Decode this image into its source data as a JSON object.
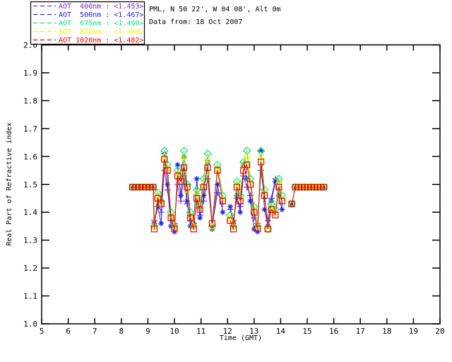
{
  "header": {
    "line1": "PML, N 50 22', W 04 08', Alt 0m",
    "line2": "Data from: 18 Oct 2007"
  },
  "colors": {
    "background": "#ffffff",
    "frame": "#000000",
    "text": "#000000"
  },
  "chart_data": {
    "type": "line",
    "title": "",
    "xlabel": "Time (GMT)",
    "ylabel": "Real Part of Refractive index",
    "xlim": [
      5,
      20
    ],
    "ylim": [
      1.0,
      2.0
    ],
    "x_tick_step": 1,
    "y_tick_step": 0.1,
    "grid": false,
    "legend_position": "top-left",
    "x": [
      8.42,
      8.55,
      8.68,
      8.81,
      8.94,
      9.07,
      9.2,
      9.24,
      9.37,
      9.5,
      9.62,
      9.74,
      9.87,
      10.0,
      10.12,
      10.24,
      10.36,
      10.48,
      10.6,
      10.72,
      10.84,
      10.96,
      11.1,
      11.25,
      11.42,
      11.62,
      11.82,
      12.1,
      12.22,
      12.35,
      12.48,
      12.6,
      12.73,
      12.86,
      13.0,
      13.13,
      13.26,
      13.39,
      13.52,
      13.65,
      13.8,
      13.93,
      14.05,
      14.42,
      14.55,
      14.67,
      14.79,
      14.91,
      15.03,
      15.15,
      15.27,
      15.39,
      15.51,
      15.63
    ],
    "segments": [
      [
        0,
        26
      ],
      [
        27,
        42
      ],
      [
        43,
        53
      ]
    ],
    "series": [
      {
        "name": "AOT 400nm",
        "legend_label": "AOT  400nm : <1.453>",
        "mean_value": "1.453",
        "color": "#7A2FC4",
        "marker": "plus",
        "values": [
          1.49,
          1.49,
          1.49,
          1.49,
          1.49,
          1.49,
          1.49,
          1.37,
          1.44,
          1.4,
          1.55,
          1.48,
          1.37,
          1.36,
          1.5,
          1.44,
          1.53,
          1.43,
          1.37,
          1.36,
          1.44,
          1.39,
          1.44,
          1.52,
          1.35,
          1.47,
          1.43,
          1.41,
          1.37,
          1.45,
          1.42,
          1.53,
          1.49,
          1.46,
          1.38,
          1.36,
          1.55,
          1.45,
          1.37,
          1.45,
          1.52,
          1.51,
          1.43,
          1.43,
          1.49,
          1.49,
          1.49,
          1.49,
          1.49,
          1.49,
          1.49,
          1.49,
          1.49,
          1.49
        ]
      },
      {
        "name": "AOT 500nm",
        "legend_label": "AOT  500nm : <1.467>",
        "mean_value": "1.467",
        "color": "#2020E0",
        "marker": "asterisk",
        "values": [
          1.49,
          1.49,
          1.49,
          1.49,
          1.49,
          1.49,
          1.49,
          1.36,
          1.42,
          1.36,
          1.61,
          1.5,
          1.35,
          1.33,
          1.57,
          1.46,
          1.6,
          1.44,
          1.35,
          1.36,
          1.52,
          1.38,
          1.46,
          1.58,
          1.34,
          1.5,
          1.4,
          1.42,
          1.36,
          1.46,
          1.4,
          1.57,
          1.52,
          1.44,
          1.34,
          1.33,
          1.62,
          1.41,
          1.35,
          1.44,
          1.51,
          1.46,
          1.41,
          1.43,
          1.49,
          1.49,
          1.49,
          1.49,
          1.49,
          1.49,
          1.49,
          1.49,
          1.49,
          1.49
        ]
      },
      {
        "name": "AOT 675nm",
        "legend_label": "AOT  675nm : <1.490>",
        "mean_value": "1.490",
        "color": "#00E87A",
        "marker": "diamond",
        "values": [
          1.49,
          1.49,
          1.49,
          1.49,
          1.49,
          1.49,
          1.49,
          1.35,
          1.47,
          1.44,
          1.62,
          1.57,
          1.4,
          1.35,
          1.55,
          1.53,
          1.62,
          1.5,
          1.4,
          1.35,
          1.48,
          1.43,
          1.52,
          1.61,
          1.35,
          1.57,
          1.46,
          1.39,
          1.35,
          1.51,
          1.46,
          1.58,
          1.62,
          1.52,
          1.42,
          1.35,
          1.62,
          1.48,
          1.34,
          1.43,
          1.41,
          1.52,
          1.46,
          1.43,
          1.49,
          1.49,
          1.49,
          1.49,
          1.49,
          1.49,
          1.49,
          1.49,
          1.49,
          1.49
        ]
      },
      {
        "name": "AOT 870nm",
        "legend_label": "AOT  870nm : <1.490>",
        "mean_value": "1.490",
        "color": "#F2F200",
        "marker": "triangle",
        "values": [
          1.49,
          1.49,
          1.49,
          1.49,
          1.49,
          1.49,
          1.49,
          1.35,
          1.46,
          1.43,
          1.6,
          1.56,
          1.39,
          1.35,
          1.54,
          1.52,
          1.6,
          1.48,
          1.39,
          1.35,
          1.47,
          1.42,
          1.5,
          1.59,
          1.35,
          1.56,
          1.45,
          1.38,
          1.35,
          1.5,
          1.45,
          1.57,
          1.6,
          1.51,
          1.41,
          1.35,
          1.6,
          1.47,
          1.34,
          1.42,
          1.4,
          1.51,
          1.45,
          1.43,
          1.49,
          1.49,
          1.49,
          1.49,
          1.49,
          1.49,
          1.49,
          1.49,
          1.49,
          1.49
        ]
      },
      {
        "name": "AOT 1020nm",
        "legend_label": "AOT 1020nm : <1.482>",
        "mean_value": "1.482",
        "color": "#EE0000",
        "marker": "square",
        "values": [
          1.49,
          1.49,
          1.49,
          1.49,
          1.49,
          1.49,
          1.49,
          1.34,
          1.45,
          1.43,
          1.59,
          1.55,
          1.38,
          1.34,
          1.53,
          1.51,
          1.56,
          1.49,
          1.38,
          1.34,
          1.45,
          1.41,
          1.49,
          1.56,
          1.36,
          1.55,
          1.44,
          1.37,
          1.34,
          1.49,
          1.44,
          1.55,
          1.57,
          1.5,
          1.4,
          1.34,
          1.58,
          1.46,
          1.34,
          1.41,
          1.39,
          1.49,
          1.44,
          1.43,
          1.49,
          1.49,
          1.49,
          1.49,
          1.49,
          1.49,
          1.49,
          1.49,
          1.49,
          1.49
        ]
      }
    ]
  }
}
